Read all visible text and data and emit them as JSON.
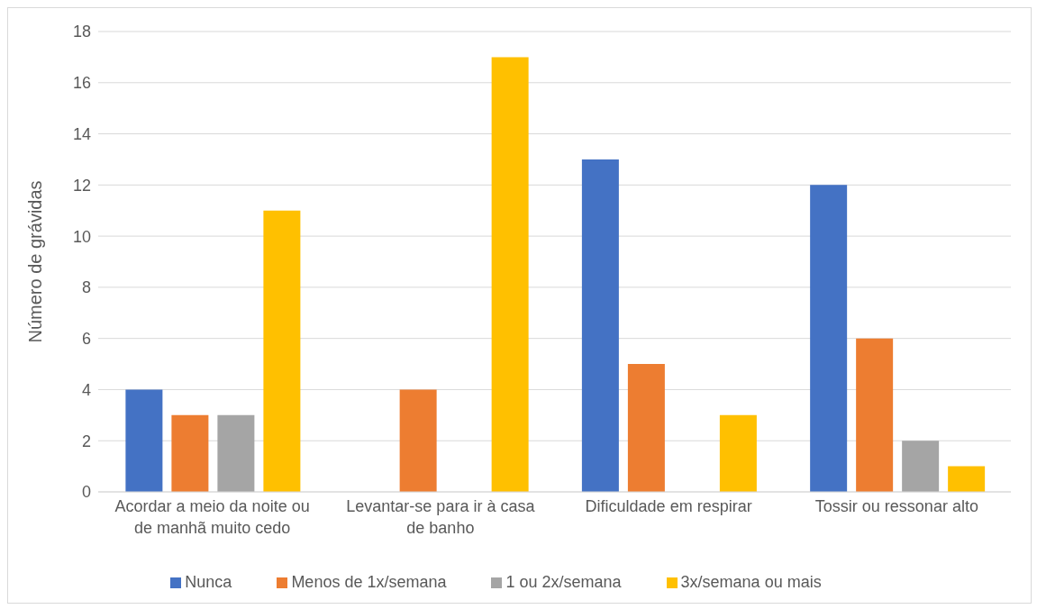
{
  "chart_data": {
    "type": "bar",
    "ylabel": "Número de grávidas",
    "categories": [
      "Acordar a meio da noite ou de manhã muito cedo",
      "Levantar-se para ir à casa de banho",
      "Dificuldade em respirar",
      "Tossir ou ressonar alto"
    ],
    "series": [
      {
        "name": "Nunca",
        "color": "#4472c4",
        "values": [
          4,
          0,
          13,
          12
        ]
      },
      {
        "name": "Menos de 1x/semana",
        "color": "#ed7d31",
        "values": [
          3,
          4,
          5,
          6
        ]
      },
      {
        "name": "1 ou 2x/semana",
        "color": "#a5a5a5",
        "values": [
          3,
          0,
          0,
          2
        ]
      },
      {
        "name": "3x/semana ou mais",
        "color": "#ffc000",
        "values": [
          11,
          17,
          3,
          1
        ]
      }
    ],
    "ylim": [
      0,
      18
    ],
    "yticks": [
      0,
      2,
      4,
      6,
      8,
      10,
      12,
      14,
      16,
      18
    ],
    "grid": "y",
    "legend": "bottom"
  }
}
